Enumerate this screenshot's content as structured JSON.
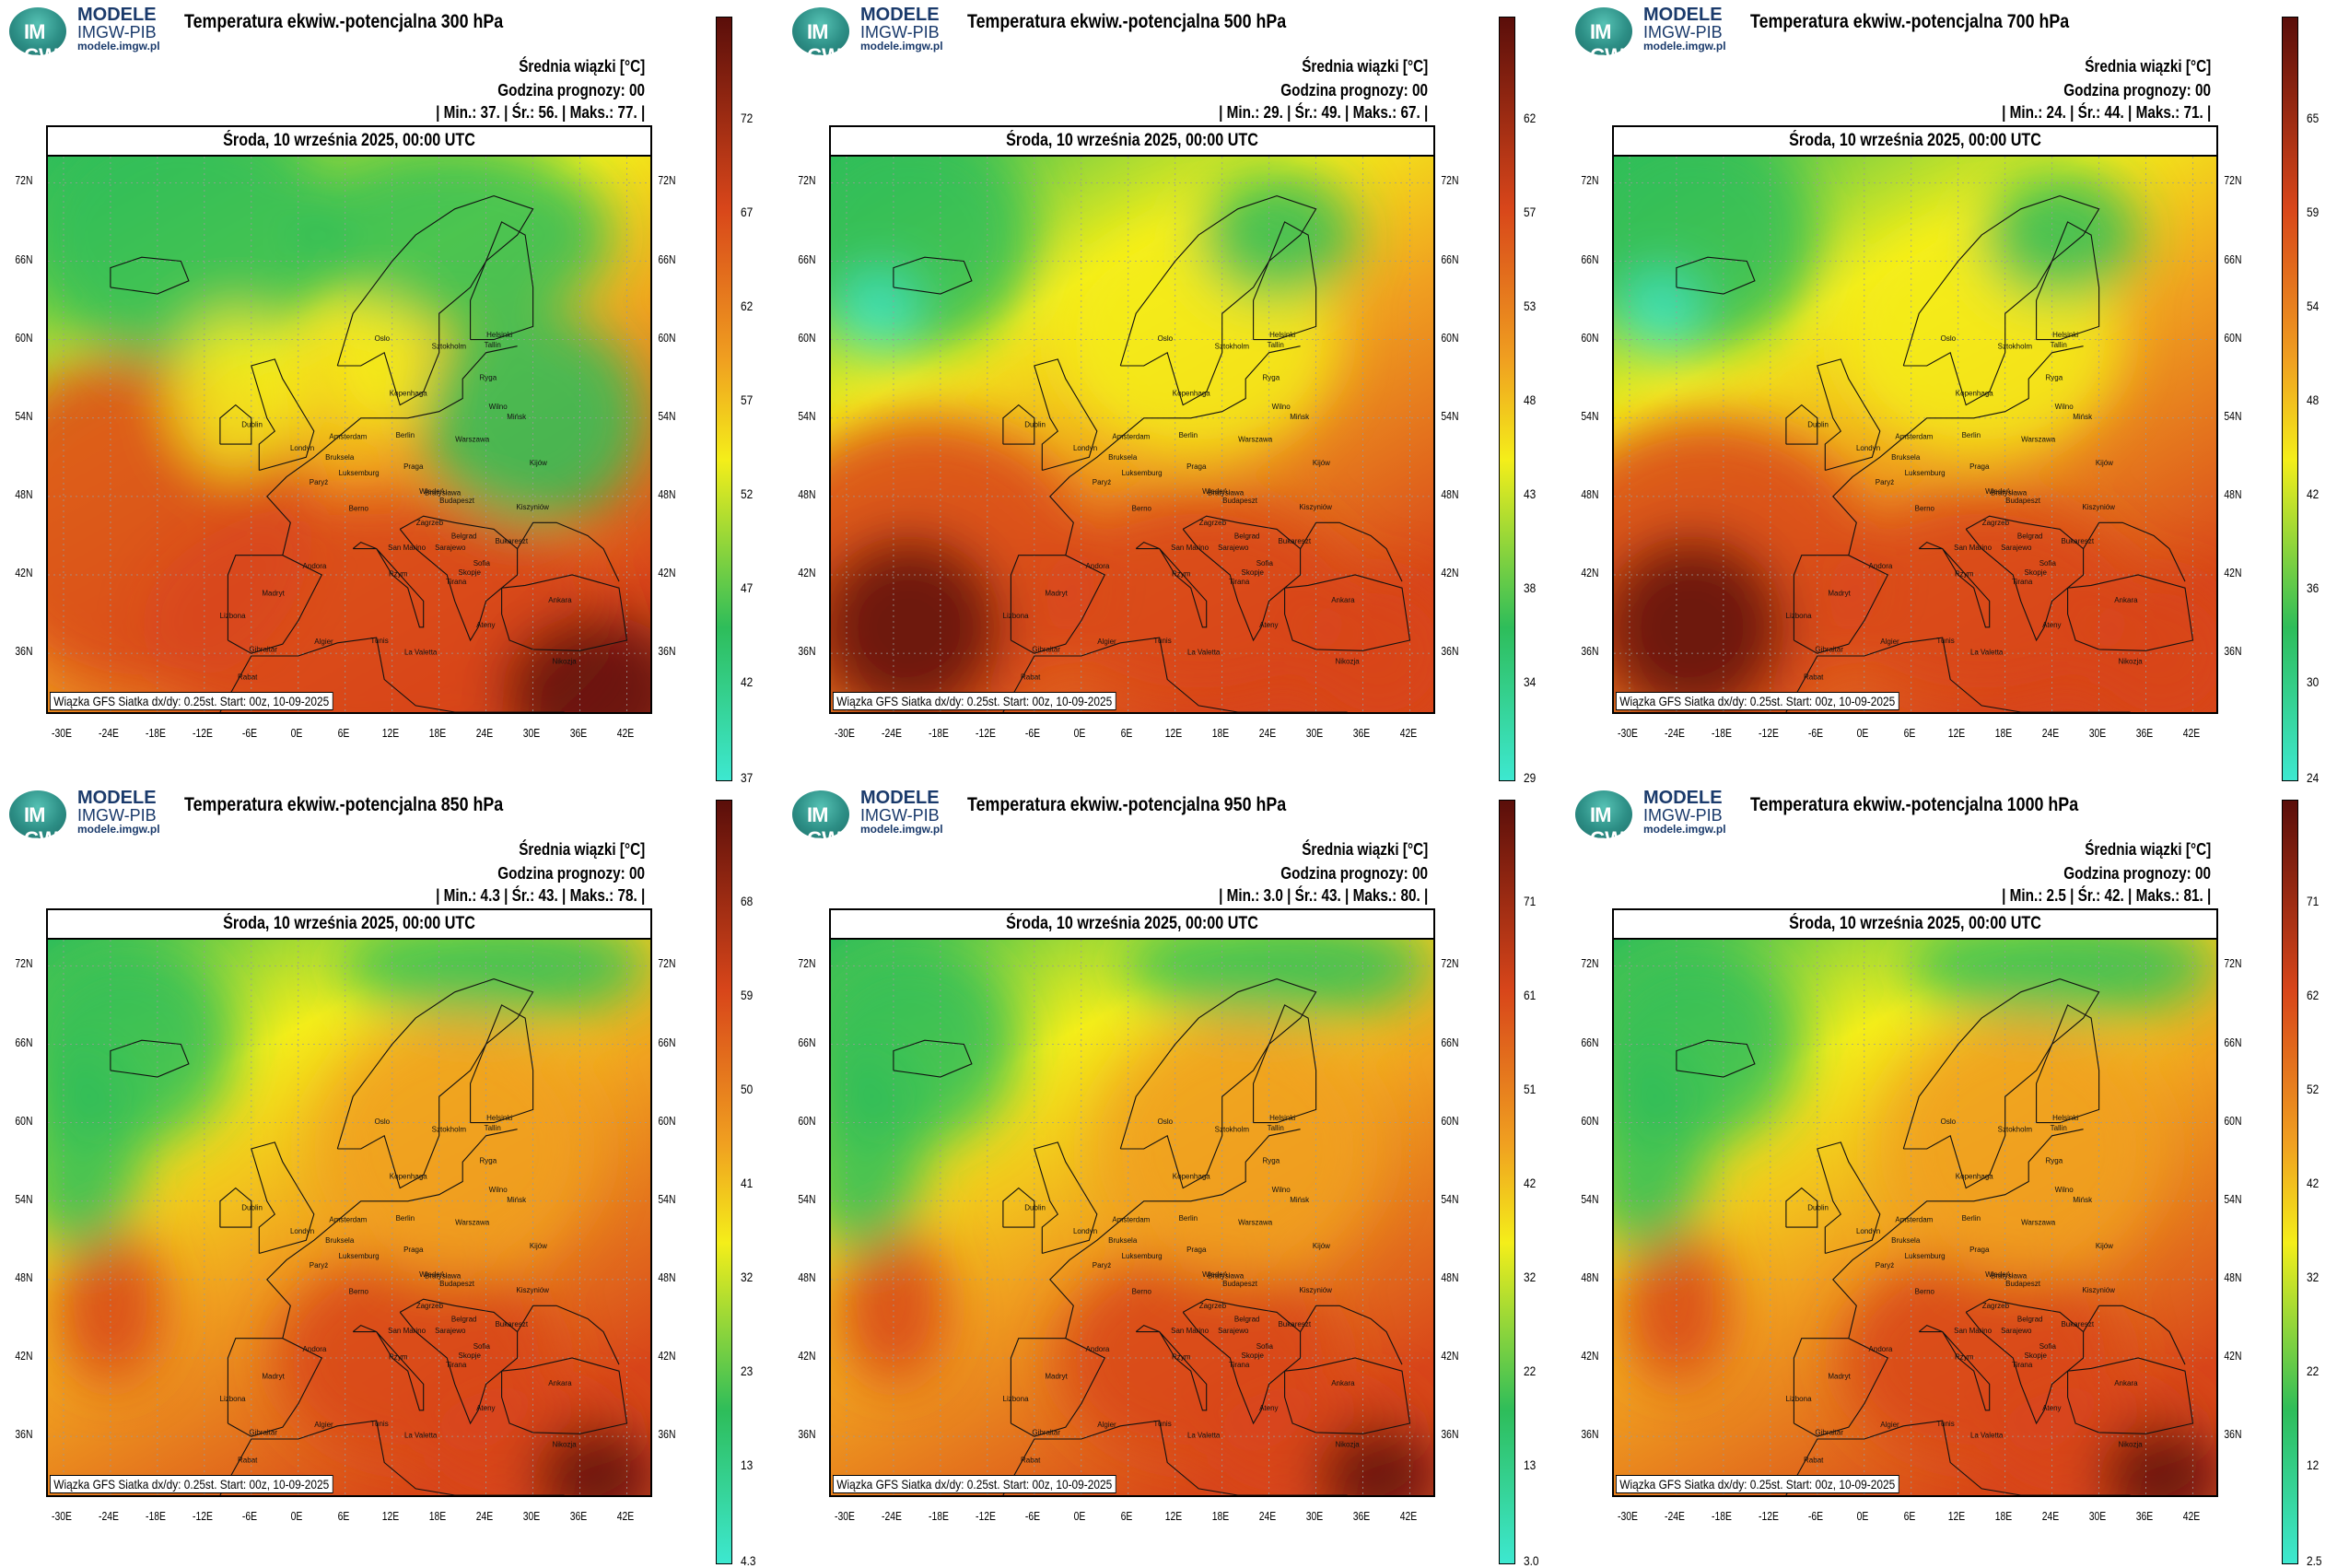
{
  "common": {
    "brand_line1": "MODELE",
    "brand_line2": "IMGW-PIB",
    "brand_line3": "modele.imgw.pl",
    "logo_text": "IM GW",
    "date": "Środa, 10 września 2025, 00:00 UTC",
    "footer": "Wiązka GFS Siatka dx/dy: 0.25st. Start: 00z, 10-09-2025",
    "info_unit_line": "Średnia wiązki [°C]",
    "info_forecast_line": "Godzina prognozy: 00",
    "lat_labels": [
      "72N",
      "66N",
      "60N",
      "54N",
      "48N",
      "42N",
      "36N"
    ],
    "lon_labels": [
      "-30E",
      "-24E",
      "-18E",
      "-12E",
      "-6E",
      "0E",
      "6E",
      "12E",
      "18E",
      "24E",
      "30E",
      "36E",
      "42E"
    ],
    "cities": [
      "Oslo",
      "Sztokholm",
      "Helsinki",
      "Tallin",
      "Ryga",
      "Wilno",
      "Mińsk",
      "Kopenhaga",
      "Warszawa",
      "Kijów",
      "Amsterdam",
      "Berlin",
      "Londyn",
      "Bruksela",
      "Luksemburg",
      "Paryż",
      "Praga",
      "Wiedeń",
      "Bratysława",
      "Budapeszt",
      "Kiszyniów",
      "Berno",
      "Bukareszt",
      "Zagrzeb",
      "Belgrad",
      "San Marino",
      "Sarajewo",
      "Sofia",
      "Andora",
      "Rzym",
      "Tirana",
      "Skopje",
      "Madryt",
      "Lizbona",
      "Ankara",
      "Ateny",
      "Algier",
      "Tunis",
      "La Valetta",
      "Gibraltar",
      "Rabat",
      "Nikozja",
      "Dublin"
    ]
  },
  "panels": [
    {
      "title": "Temperatura ekwiw.-potencjalna 300 hPa",
      "stats": "| Min.:    37. | Śr.:    56. | Maks.:    77. |",
      "colorbar_ticks": [
        "72",
        "67",
        "62",
        "57",
        "52",
        "47",
        "42",
        "37"
      ],
      "field": {
        "min": 37,
        "mean": 56,
        "max": 77,
        "pattern": "upper"
      }
    },
    {
      "title": "Temperatura ekwiw.-potencjalna 500 hPa",
      "stats": "| Min.:    29. | Śr.:    49. | Maks.:    67. |",
      "colorbar_ticks": [
        "62",
        "57",
        "53",
        "48",
        "43",
        "38",
        "34",
        "29"
      ],
      "field": {
        "min": 29,
        "mean": 49,
        "max": 67,
        "pattern": "mid"
      }
    },
    {
      "title": "Temperatura ekwiw.-potencjalna 700 hPa",
      "stats": "| Min.:    24. | Śr.:    44. | Maks.:    71. |",
      "colorbar_ticks": [
        "65",
        "59",
        "54",
        "48",
        "42",
        "36",
        "30",
        "24"
      ],
      "field": {
        "min": 24,
        "mean": 44,
        "max": 71,
        "pattern": "mid"
      }
    },
    {
      "title": "Temperatura ekwiw.-potencjalna 850 hPa",
      "stats": "| Min.:   4.3 | Śr.:    43. | Maks.:    78. |",
      "colorbar_ticks": [
        "68",
        "59",
        "50",
        "41",
        "32",
        "23",
        "13",
        "4.3"
      ],
      "field": {
        "min": 4.3,
        "mean": 43,
        "max": 78,
        "pattern": "low"
      }
    },
    {
      "title": "Temperatura ekwiw.-potencjalna 950 hPa",
      "stats": "| Min.:   3.0 | Śr.:    43. | Maks.:    80. |",
      "colorbar_ticks": [
        "71",
        "61",
        "51",
        "42",
        "32",
        "22",
        "13",
        "3.0"
      ],
      "field": {
        "min": 3.0,
        "mean": 43,
        "max": 80,
        "pattern": "low"
      }
    },
    {
      "title": "Temperatura ekwiw.-potencjalna 1000 hPa",
      "stats": "| Min.:   2.5 | Śr.:    42. | Maks.:    81. |",
      "colorbar_ticks": [
        "71",
        "62",
        "52",
        "42",
        "32",
        "22",
        "12",
        "2.5"
      ],
      "field": {
        "min": 2.5,
        "mean": 42,
        "max": 81,
        "pattern": "low"
      }
    }
  ],
  "colors": {
    "cold": "#3de8d0",
    "green": "#2ebd5a",
    "yellow": "#f4ee1a",
    "orange": "#f0a020",
    "red": "#d8461a",
    "dark": "#5a0e0a"
  }
}
